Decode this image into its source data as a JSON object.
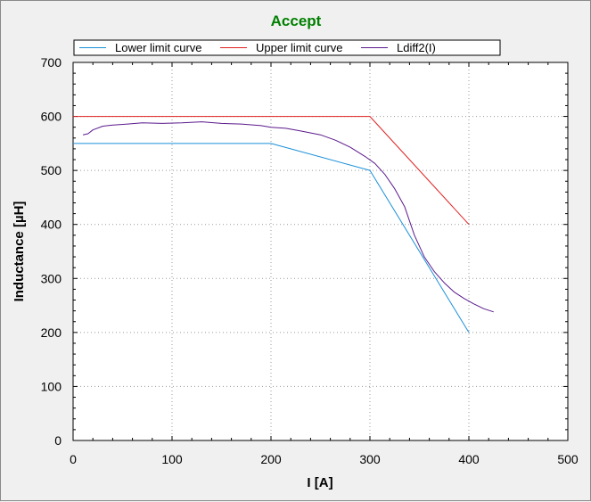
{
  "chart_data": {
    "type": "line",
    "title": "Accept",
    "title_color": "#008000",
    "xlabel": "I [A]",
    "ylabel": "Inductance [µH]",
    "xlim": [
      0,
      500
    ],
    "ylim": [
      0,
      700
    ],
    "x_ticks": [
      0,
      100,
      200,
      300,
      400,
      500
    ],
    "y_ticks": [
      0,
      100,
      200,
      300,
      400,
      500,
      600,
      700
    ],
    "grid": true,
    "legend_position": "top",
    "series": [
      {
        "name": "Lower limit curve",
        "color": "#1a8fd8",
        "points": [
          [
            0,
            550
          ],
          [
            200,
            550
          ],
          [
            300,
            500
          ],
          [
            400,
            200
          ]
        ]
      },
      {
        "name": "Upper limit curve",
        "color": "#e02020",
        "points": [
          [
            0,
            600
          ],
          [
            300,
            600
          ],
          [
            400,
            400
          ]
        ]
      },
      {
        "name": "Ldiff2(I)",
        "color": "#5a1a8c",
        "points": [
          [
            10,
            566
          ],
          [
            15,
            568
          ],
          [
            20,
            575
          ],
          [
            30,
            582
          ],
          [
            40,
            584
          ],
          [
            55,
            586
          ],
          [
            70,
            588
          ],
          [
            90,
            587
          ],
          [
            110,
            588
          ],
          [
            130,
            590
          ],
          [
            150,
            587
          ],
          [
            170,
            586
          ],
          [
            190,
            583
          ],
          [
            200,
            580
          ],
          [
            215,
            578
          ],
          [
            230,
            573
          ],
          [
            250,
            566
          ],
          [
            265,
            556
          ],
          [
            280,
            543
          ],
          [
            295,
            526
          ],
          [
            305,
            513
          ],
          [
            315,
            493
          ],
          [
            325,
            466
          ],
          [
            335,
            433
          ],
          [
            345,
            380
          ],
          [
            355,
            340
          ],
          [
            365,
            313
          ],
          [
            375,
            292
          ],
          [
            385,
            275
          ],
          [
            395,
            263
          ],
          [
            405,
            253
          ],
          [
            415,
            244
          ],
          [
            425,
            238
          ]
        ]
      }
    ]
  }
}
